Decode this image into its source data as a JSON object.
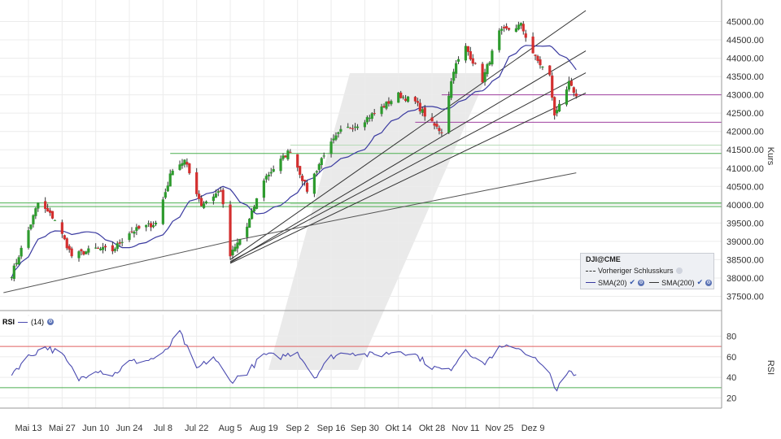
{
  "chart_data": [
    {
      "type": "candlestick",
      "symbol": "DJI@CME",
      "ylabel": "Kurs",
      "ylim": [
        37250,
        45250
      ],
      "y_ticks": [
        "45000.00",
        "44500.00",
        "44000.00",
        "43500.00",
        "43000.00",
        "42500.00",
        "42000.00",
        "41500.00",
        "41000.00",
        "40500.00",
        "40000.00",
        "39500.00",
        "39000.00",
        "38500.00",
        "38000.00",
        "37500.00"
      ],
      "x_ticks": [
        "Mai 13",
        "Mai 27",
        "Jun 10",
        "Jun 24",
        "Jul 8",
        "Jul 22",
        "Aug 5",
        "Aug 19",
        "Sep 2",
        "Sep 16",
        "Sep 30",
        "Okt 14",
        "Okt 28",
        "Nov 11",
        "Nov 25",
        "Dez 9"
      ],
      "close_anchors": [
        {
          "date": "May 6",
          "value": 38100
        },
        {
          "date": "May 13",
          "value": 39300
        },
        {
          "date": "May 17",
          "value": 40050
        },
        {
          "date": "May 24",
          "value": 39600
        },
        {
          "date": "May 31",
          "value": 38600
        },
        {
          "date": "Jun 10",
          "value": 38800
        },
        {
          "date": "Jun 17",
          "value": 38750
        },
        {
          "date": "Jun 24",
          "value": 39250
        },
        {
          "date": "Jul 5",
          "value": 39500
        },
        {
          "date": "Jul 12",
          "value": 41000
        },
        {
          "date": "Jul 17",
          "value": 41200
        },
        {
          "date": "Jul 24",
          "value": 40000
        },
        {
          "date": "Aug 1",
          "value": 40400
        },
        {
          "date": "Aug 5",
          "value": 38600
        },
        {
          "date": "Aug 12",
          "value": 39400
        },
        {
          "date": "Aug 19",
          "value": 40700
        },
        {
          "date": "Aug 30",
          "value": 41500
        },
        {
          "date": "Sep 6",
          "value": 40400
        },
        {
          "date": "Sep 13",
          "value": 41400
        },
        {
          "date": "Sep 20",
          "value": 42000
        },
        {
          "date": "Sep 27",
          "value": 42200
        },
        {
          "date": "Oct 4",
          "value": 42500
        },
        {
          "date": "Oct 14",
          "value": 43000
        },
        {
          "date": "Oct 21",
          "value": 42800
        },
        {
          "date": "Oct 28",
          "value": 42200
        },
        {
          "date": "Nov 1",
          "value": 42000
        },
        {
          "date": "Nov 6",
          "value": 43700
        },
        {
          "date": "Nov 11",
          "value": 44300
        },
        {
          "date": "Nov 18",
          "value": 43400
        },
        {
          "date": "Nov 25",
          "value": 44700
        },
        {
          "date": "Dec 4",
          "value": 44900
        },
        {
          "date": "Dec 10",
          "value": 44000
        },
        {
          "date": "Dec 16",
          "value": 43500
        },
        {
          "date": "Dec 18",
          "value": 42400
        },
        {
          "date": "Dec 20",
          "value": 42800
        },
        {
          "date": "Dec 24",
          "value": 43300
        },
        {
          "date": "Dec 27",
          "value": 42900
        }
      ],
      "horizontal_lines": [
        {
          "value": 43000,
          "color": "#a040a0"
        },
        {
          "value": 42250,
          "color": "#a040a0"
        },
        {
          "value": 41400,
          "color": "#4caf50"
        },
        {
          "value": 40050,
          "color": "#4caf50"
        },
        {
          "value": 39950,
          "color": "#4caf50"
        }
      ],
      "series": [
        {
          "name": "Vorheriger Schlusskurs",
          "style": "dashed",
          "color": "#333333"
        },
        {
          "name": "SMA(20)",
          "color": "#3a3aa0"
        },
        {
          "name": "SMA(200)",
          "color": "#555555"
        }
      ],
      "colors": {
        "up": "#2e9b2e",
        "down": "#d32f2f"
      }
    },
    {
      "type": "line",
      "indicator": "RSI",
      "series": [
        {
          "name": "(14)",
          "color": "#4a4ab0"
        }
      ],
      "ylabel": "RSI",
      "ylim": [
        10,
        90
      ],
      "y_ticks": [
        "80",
        "60",
        "40",
        "20"
      ],
      "levels": [
        {
          "value": 70,
          "color": "#e06060"
        },
        {
          "value": 30,
          "color": "#4caf50"
        }
      ],
      "values_anchors": [
        {
          "date": "May 6",
          "value": 44
        },
        {
          "date": "May 13",
          "value": 60
        },
        {
          "date": "May 20",
          "value": 70
        },
        {
          "date": "May 27",
          "value": 62
        },
        {
          "date": "Jun 3",
          "value": 38
        },
        {
          "date": "Jun 10",
          "value": 48
        },
        {
          "date": "Jun 17",
          "value": 42
        },
        {
          "date": "Jun 24",
          "value": 55
        },
        {
          "date": "Jul 1",
          "value": 56
        },
        {
          "date": "Jul 8",
          "value": 62
        },
        {
          "date": "Jul 15",
          "value": 84
        },
        {
          "date": "Jul 22",
          "value": 48
        },
        {
          "date": "Jul 29",
          "value": 60
        },
        {
          "date": "Aug 5",
          "value": 36
        },
        {
          "date": "Aug 12",
          "value": 45
        },
        {
          "date": "Aug 19",
          "value": 62
        },
        {
          "date": "Aug 26",
          "value": 60
        },
        {
          "date": "Sep 2",
          "value": 65
        },
        {
          "date": "Sep 9",
          "value": 40
        },
        {
          "date": "Sep 16",
          "value": 60
        },
        {
          "date": "Sep 23",
          "value": 65
        },
        {
          "date": "Sep 30",
          "value": 62
        },
        {
          "date": "Oct 7",
          "value": 62
        },
        {
          "date": "Oct 14",
          "value": 66
        },
        {
          "date": "Oct 21",
          "value": 62
        },
        {
          "date": "Oct 28",
          "value": 50
        },
        {
          "date": "Nov 4",
          "value": 46
        },
        {
          "date": "Nov 11",
          "value": 68
        },
        {
          "date": "Nov 18",
          "value": 52
        },
        {
          "date": "Nov 25",
          "value": 68
        },
        {
          "date": "Dec 2",
          "value": 70
        },
        {
          "date": "Dec 9",
          "value": 60
        },
        {
          "date": "Dec 16",
          "value": 42
        },
        {
          "date": "Dec 19",
          "value": 28
        },
        {
          "date": "Dec 24",
          "value": 45
        },
        {
          "date": "Dec 27",
          "value": 41
        }
      ]
    }
  ]
}
